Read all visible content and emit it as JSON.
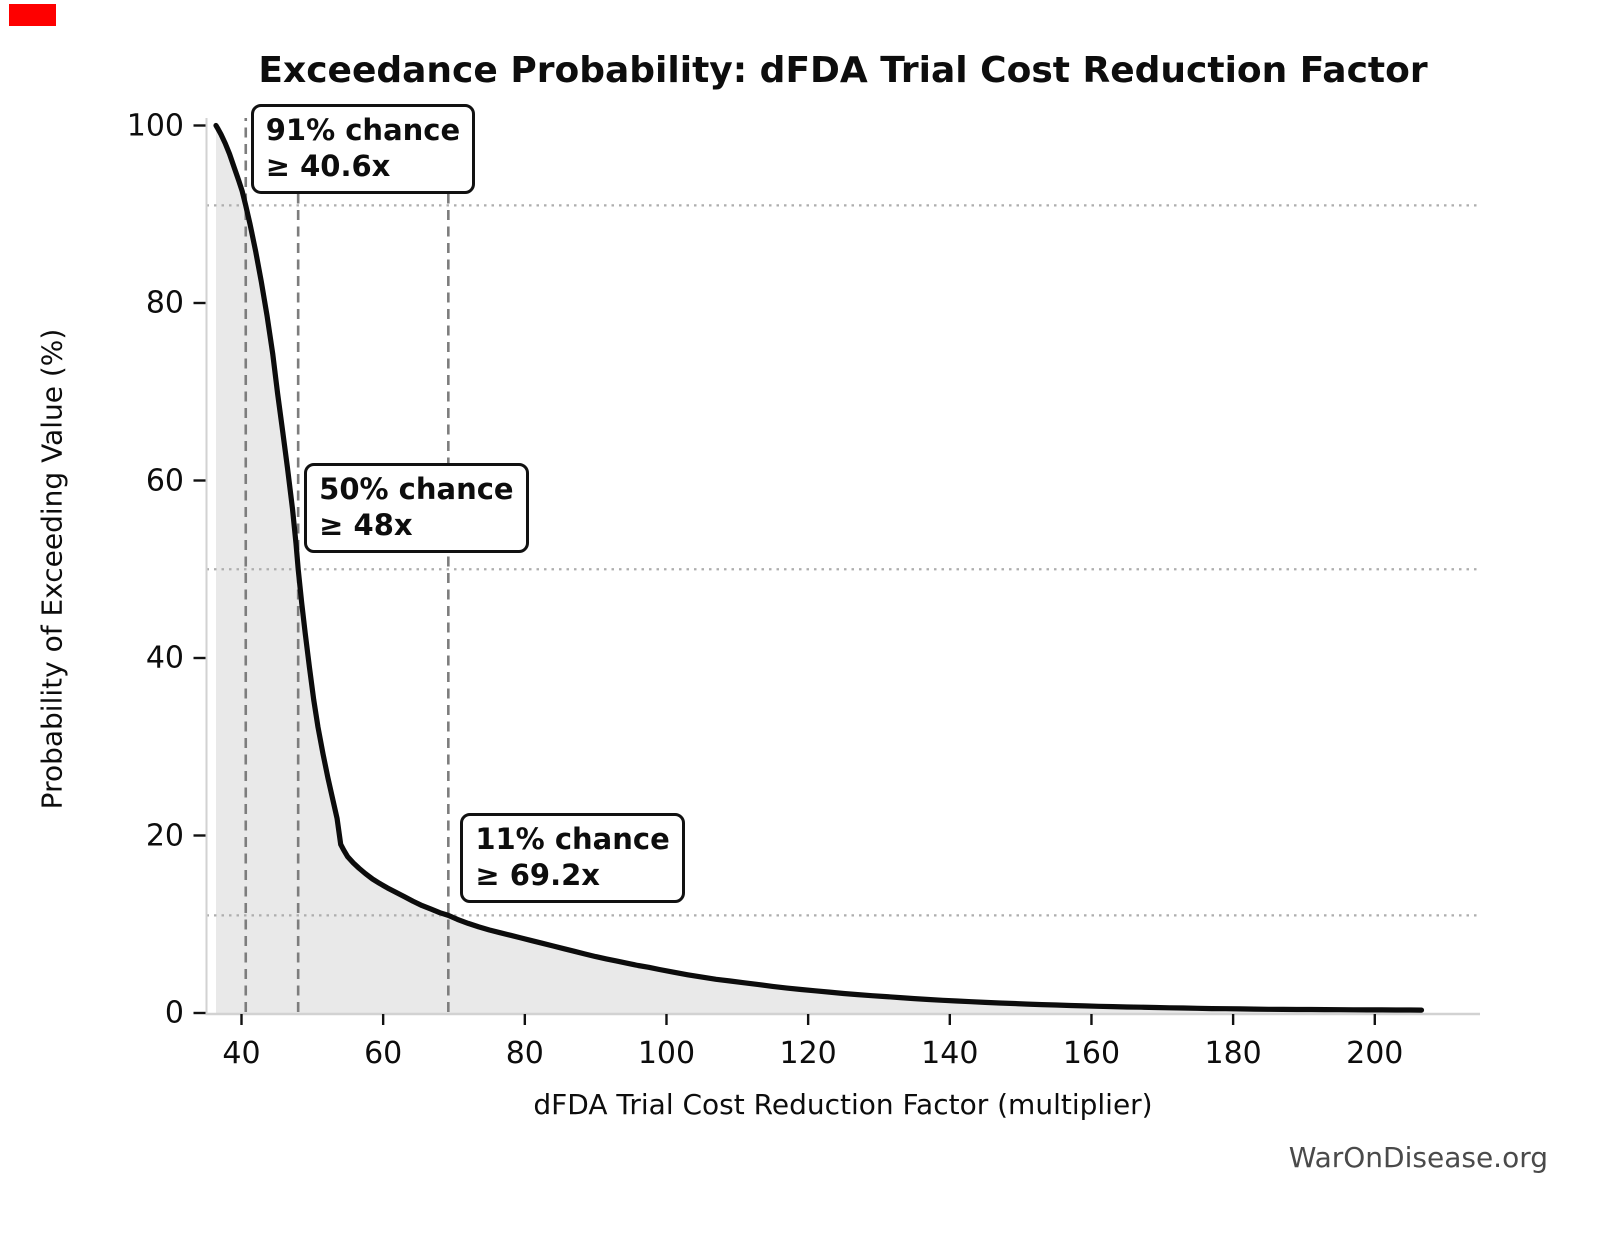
{
  "marker_color": "#fe0000",
  "watermark": "WarOnDisease.org",
  "chart_data": {
    "type": "line",
    "title": "Exceedance Probability: dFDA Trial Cost Reduction Factor",
    "xlabel": "dFDA Trial Cost Reduction Factor (multiplier)",
    "ylabel": "Probability of Exceeding Value (%)",
    "xlim": [
      35,
      215
    ],
    "ylim": [
      0,
      100
    ],
    "x_ticks": [
      40,
      60,
      80,
      100,
      120,
      140,
      160,
      180,
      200
    ],
    "y_ticks": [
      0,
      20,
      40,
      60,
      80,
      100
    ],
    "grid": "dotted horizontal lines only at annotation probability levels",
    "legend": "none",
    "line_color": "#0c0c0c",
    "fill_color": "#e9e9e9",
    "dashed_line_color": "#7d7d7d",
    "dotted_grid_color": "#aeaeae",
    "spine_color": "#d2d2d2",
    "reference_lines": {
      "vertical_dashed_x": [
        40.6,
        48,
        69.2
      ],
      "horizontal_dotted_y": [
        91,
        50,
        11
      ]
    },
    "annotations": [
      {
        "line1": "91% chance",
        "line2": "≥ 40.6x",
        "x": 40.6,
        "prob": 91
      },
      {
        "line1": "50% chance",
        "line2": "≥ 48x",
        "x": 48,
        "prob": 50
      },
      {
        "line1": "11% chance",
        "line2": "≥ 69.2x",
        "x": 69.2,
        "prob": 11
      }
    ],
    "series": [
      {
        "name": "exceedance probability curve",
        "points": [
          [
            36.4,
            100
          ],
          [
            36.7,
            99.6
          ],
          [
            37.1,
            99
          ],
          [
            37.7,
            98
          ],
          [
            38.3,
            96.8
          ],
          [
            39,
            95.2
          ],
          [
            39.6,
            93.8
          ],
          [
            40.1,
            92.6
          ],
          [
            40.6,
            91
          ],
          [
            41.2,
            88.9
          ],
          [
            42,
            85.8
          ],
          [
            42.8,
            82.4
          ],
          [
            43.6,
            78.6
          ],
          [
            44.4,
            74.3
          ],
          [
            45.1,
            69.8
          ],
          [
            45.8,
            65.6
          ],
          [
            46.5,
            61.4
          ],
          [
            47.2,
            56.8
          ],
          [
            47.7,
            52.9
          ],
          [
            48,
            50
          ],
          [
            48.5,
            46.2
          ],
          [
            49,
            42.8
          ],
          [
            49.6,
            38.9
          ],
          [
            50.2,
            35.3
          ],
          [
            50.8,
            32.2
          ],
          [
            51.5,
            29.2
          ],
          [
            52.2,
            26.5
          ],
          [
            52.9,
            24
          ],
          [
            53.5,
            21.9
          ],
          [
            54,
            19
          ],
          [
            54.4,
            18.4
          ],
          [
            55,
            17.6
          ],
          [
            55.8,
            16.9
          ],
          [
            56.6,
            16.3
          ],
          [
            57.5,
            15.7
          ],
          [
            58.5,
            15.1
          ],
          [
            59.5,
            14.6
          ],
          [
            60.6,
            14.1
          ],
          [
            61.8,
            13.6
          ],
          [
            63,
            13.1
          ],
          [
            64.2,
            12.6
          ],
          [
            65.5,
            12.1
          ],
          [
            66.8,
            11.7
          ],
          [
            68,
            11.3
          ],
          [
            69.2,
            11
          ],
          [
            70.5,
            10.55
          ],
          [
            72,
            10.1
          ],
          [
            73.5,
            9.7
          ],
          [
            75,
            9.35
          ],
          [
            76.5,
            9.05
          ],
          [
            78,
            8.75
          ],
          [
            79.5,
            8.45
          ],
          [
            81,
            8.15
          ],
          [
            82.5,
            7.85
          ],
          [
            84,
            7.55
          ],
          [
            85.5,
            7.25
          ],
          [
            87,
            6.95
          ],
          [
            88.5,
            6.65
          ],
          [
            90,
            6.35
          ],
          [
            91.5,
            6.1
          ],
          [
            93,
            5.85
          ],
          [
            94.5,
            5.6
          ],
          [
            96,
            5.35
          ],
          [
            97.5,
            5.15
          ],
          [
            99,
            4.9
          ],
          [
            101,
            4.6
          ],
          [
            103,
            4.3
          ],
          [
            105,
            4.05
          ],
          [
            107,
            3.8
          ],
          [
            109,
            3.6
          ],
          [
            111,
            3.4
          ],
          [
            113,
            3.2
          ],
          [
            115,
            3.0
          ],
          [
            117,
            2.8
          ],
          [
            119,
            2.65
          ],
          [
            121,
            2.5
          ],
          [
            123,
            2.35
          ],
          [
            125,
            2.2
          ],
          [
            127,
            2.07
          ],
          [
            129,
            1.95
          ],
          [
            131,
            1.85
          ],
          [
            133,
            1.73
          ],
          [
            135,
            1.62
          ],
          [
            137,
            1.52
          ],
          [
            139,
            1.43
          ],
          [
            141,
            1.35
          ],
          [
            143,
            1.27
          ],
          [
            145,
            1.2
          ],
          [
            147,
            1.13
          ],
          [
            149,
            1.07
          ],
          [
            151,
            1.0
          ],
          [
            153,
            0.95
          ],
          [
            155,
            0.9
          ],
          [
            157,
            0.85
          ],
          [
            159,
            0.8
          ],
          [
            161,
            0.76
          ],
          [
            163,
            0.72
          ],
          [
            165,
            0.68
          ],
          [
            167,
            0.65
          ],
          [
            169,
            0.62
          ],
          [
            171,
            0.59
          ],
          [
            173,
            0.56
          ],
          [
            175,
            0.53
          ],
          [
            177,
            0.5
          ],
          [
            179,
            0.48
          ],
          [
            181,
            0.46
          ],
          [
            183,
            0.44
          ],
          [
            185,
            0.42
          ],
          [
            187,
            0.41
          ],
          [
            189,
            0.4
          ],
          [
            191,
            0.39
          ],
          [
            193,
            0.38
          ],
          [
            195,
            0.37
          ],
          [
            197,
            0.36
          ],
          [
            199,
            0.35
          ],
          [
            201,
            0.35
          ],
          [
            203,
            0.34
          ],
          [
            205,
            0.34
          ],
          [
            206.6,
            0.33
          ]
        ]
      }
    ]
  }
}
